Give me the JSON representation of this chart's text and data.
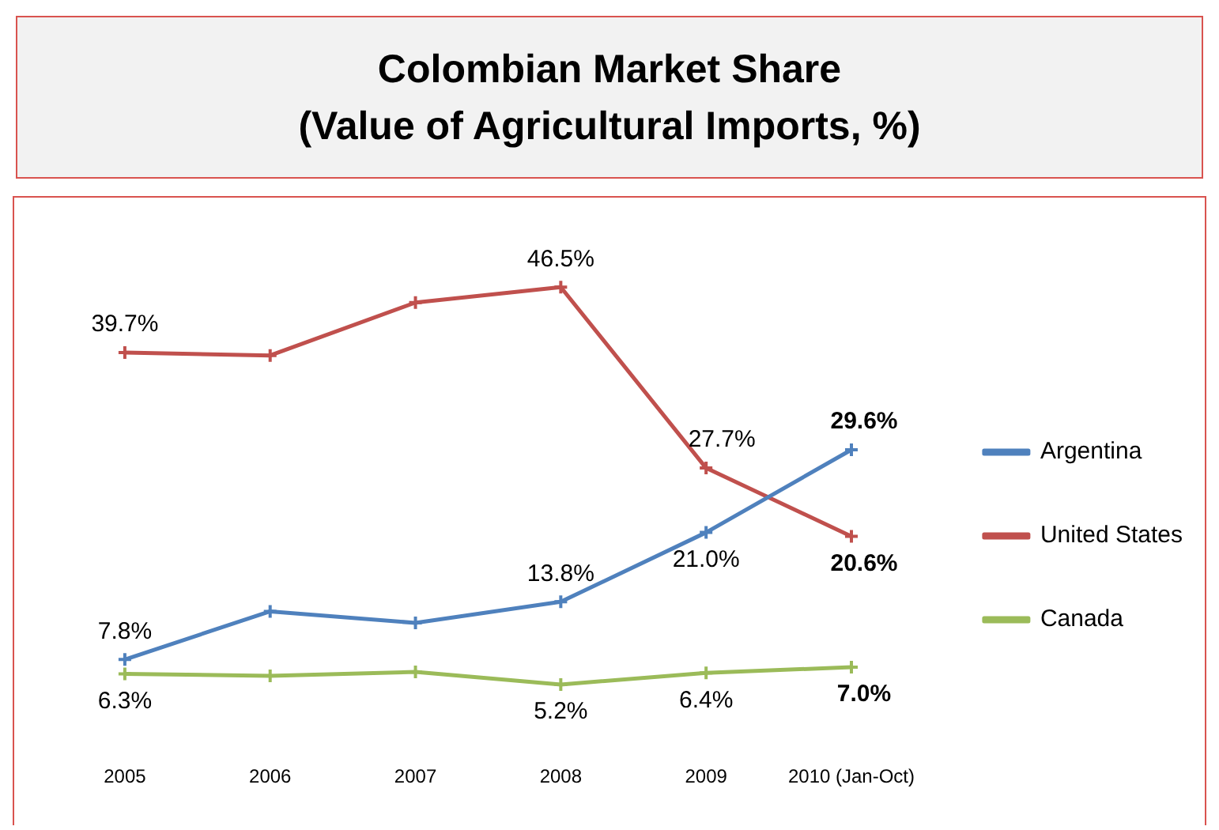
{
  "chart_data": {
    "type": "line",
    "title": "Colombian Market Share\n(Value of Agricultural Imports, %)",
    "categories": [
      "2005",
      "2006",
      "2007",
      "2008",
      "2009",
      "2010 (Jan-Oct)"
    ],
    "series": [
      {
        "name": "Argentina",
        "color": "#4f81bd",
        "values": [
          7.8,
          12.8,
          11.6,
          13.8,
          21.0,
          29.6
        ],
        "value_labels": [
          "7.8%",
          null,
          null,
          "13.8%",
          "21.0%",
          "29.6%"
        ]
      },
      {
        "name": "United States",
        "color": "#c0504d",
        "values": [
          39.7,
          39.4,
          44.9,
          46.5,
          27.7,
          20.6
        ],
        "value_labels": [
          "39.7%",
          null,
          null,
          "46.5%",
          "27.7%",
          "20.6%"
        ]
      },
      {
        "name": "Canada",
        "color": "#9bbb59",
        "values": [
          6.3,
          6.1,
          6.5,
          5.2,
          6.4,
          7.0
        ],
        "value_labels": [
          "6.3%",
          null,
          null,
          "5.2%",
          "6.4%",
          "7.0%"
        ]
      }
    ],
    "tick_labels": "x",
    "legend": "right",
    "marker": "cross",
    "grid": false
  }
}
